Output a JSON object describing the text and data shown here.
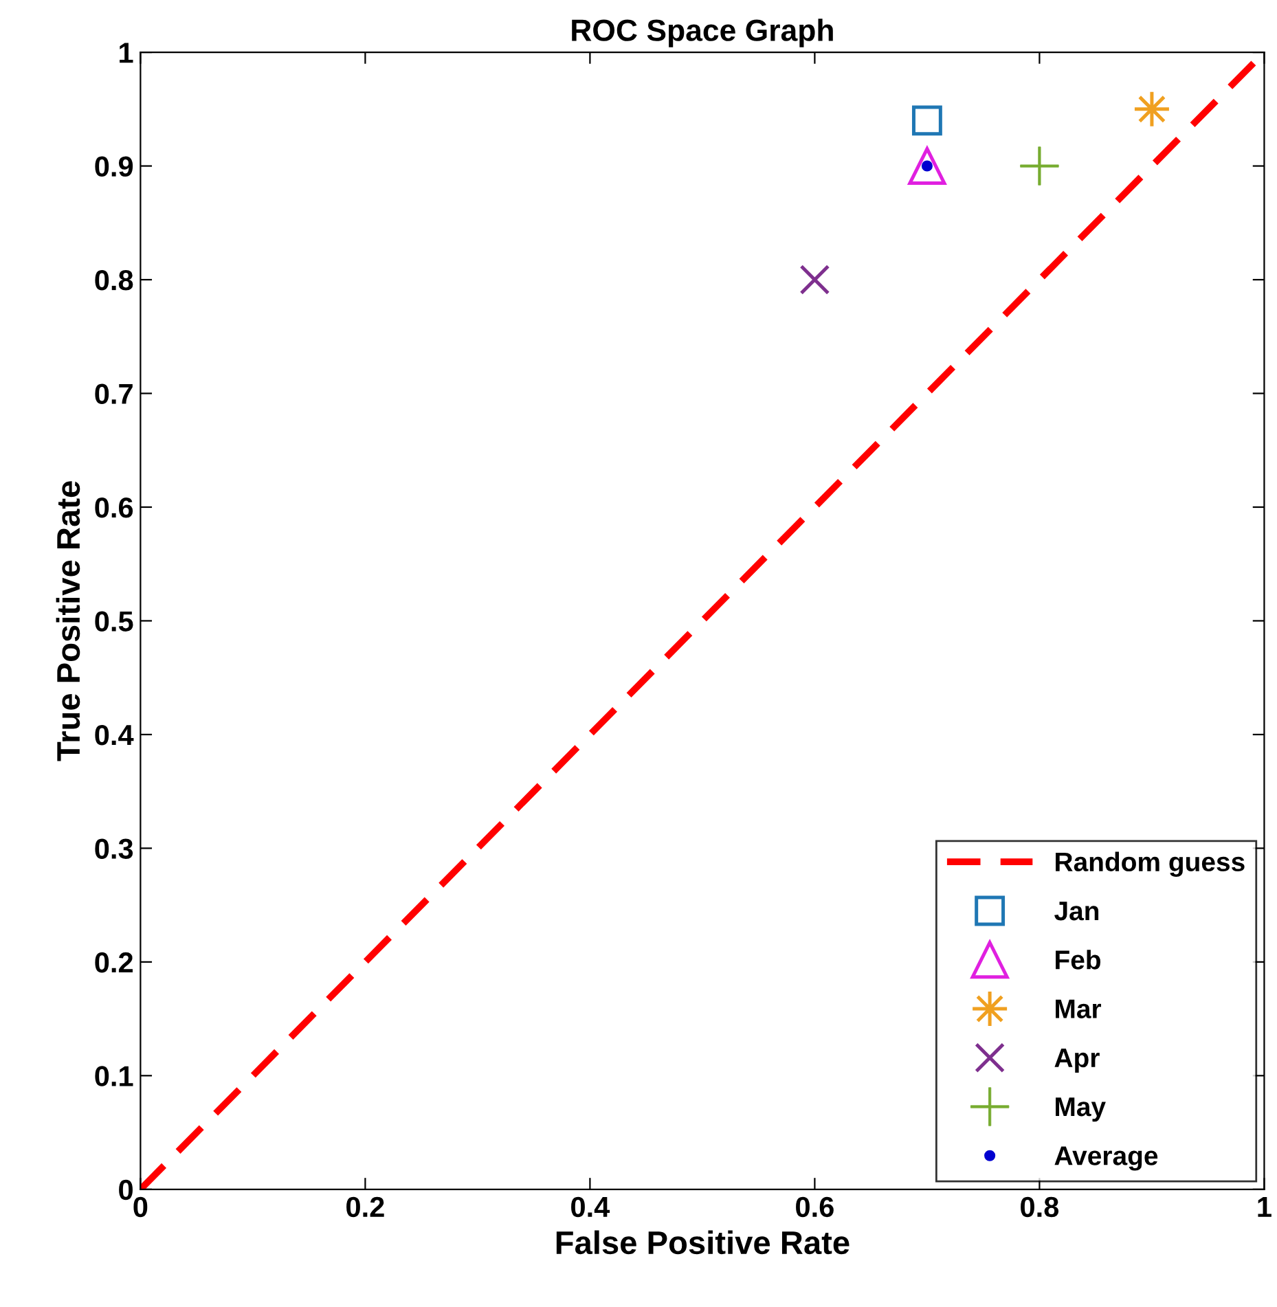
{
  "chart_data": {
    "type": "scatter",
    "title": "ROC Space Graph",
    "xlabel": "False Positive Rate",
    "ylabel": "True Positive Rate",
    "xlim": [
      0,
      1
    ],
    "ylim": [
      0,
      1
    ],
    "xticks": [
      0,
      0.2,
      0.4,
      0.6,
      0.8,
      1
    ],
    "yticks": [
      0,
      0.1,
      0.2,
      0.3,
      0.4,
      0.5,
      0.6,
      0.7,
      0.8,
      0.9,
      1
    ],
    "grid": false,
    "legend": "bottom right",
    "series": [
      {
        "name": "Random guess",
        "type": "line",
        "color": "#ff0000",
        "line_style": "dashed",
        "marker": "none",
        "x": [
          0,
          1
        ],
        "values": [
          0,
          1
        ]
      },
      {
        "name": "Jan",
        "color": "#1f77b4",
        "marker": "square",
        "x": [
          0.7
        ],
        "values": [
          0.94
        ]
      },
      {
        "name": "Feb",
        "color": "#e020e0",
        "marker": "triangle",
        "x": [
          0.7
        ],
        "values": [
          0.9
        ]
      },
      {
        "name": "Mar",
        "color": "#f0a020",
        "marker": "star",
        "x": [
          0.9
        ],
        "values": [
          0.95
        ]
      },
      {
        "name": "Apr",
        "color": "#7e2f8e",
        "marker": "cross",
        "x": [
          0.6
        ],
        "values": [
          0.8
        ]
      },
      {
        "name": "May",
        "color": "#77ac30",
        "x": [
          0.8
        ],
        "values": [
          0.9
        ]
      },
      {
        "name": "Average",
        "color": "#0000d0",
        "marker": "circle",
        "x": [
          0.7
        ],
        "values": [
          0.9
        ]
      }
    ]
  }
}
